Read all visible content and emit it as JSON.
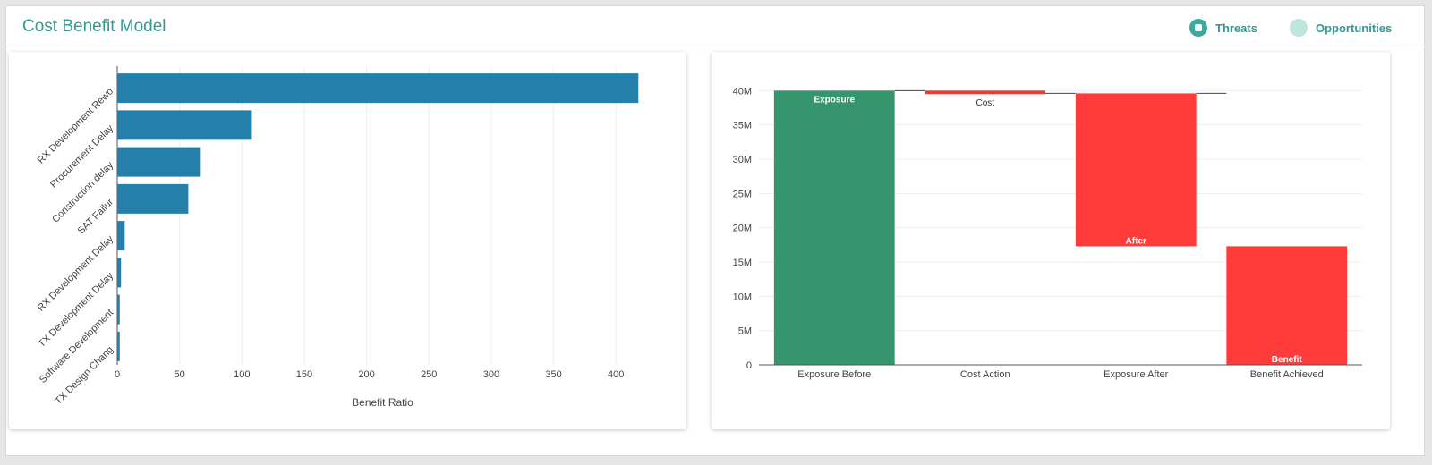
{
  "header": {
    "title": "Cost Benefit Model",
    "toggles": [
      {
        "label": "Threats",
        "icon": "radio-selected-icon",
        "color": "#3aa99e",
        "selected": true
      },
      {
        "label": "Opportunities",
        "icon": "radio-unselected-icon",
        "color": "#bfe6dc",
        "selected": false
      }
    ]
  },
  "chart_data": [
    {
      "type": "bar",
      "orientation": "horizontal",
      "categories": [
        "RX Development Rework",
        "Procurement Delay",
        "Construction delay",
        "SAT Failure",
        "RX Development Delay",
        "TX Development Delay",
        "Software Development",
        "TX Design Change"
      ],
      "category_labels": [
        "RX Development Rewo",
        "Procurement Delay",
        "Construction delay",
        "SAT Failur",
        "RX Development Delay",
        "TX Development Delay",
        "Software Development",
        "TX Design Chang"
      ],
      "values": [
        418,
        108,
        67,
        57,
        6,
        3,
        2,
        2
      ],
      "xlabel": "Benefit Ratio",
      "ylabel": "",
      "xlim": [
        0,
        430
      ],
      "xticks": [
        0,
        50,
        100,
        150,
        200,
        250,
        300,
        350,
        400
      ],
      "color": "#2480aa",
      "grid": true
    },
    {
      "type": "bar",
      "subtype": "waterfall",
      "categories": [
        "Exposure Before",
        "Cost Action",
        "Exposure After",
        "Benefit Achieved"
      ],
      "bars": [
        {
          "label": "Exposure",
          "base": 0,
          "top": 40000000,
          "color": "#37956d",
          "label_pos": "top-inside"
        },
        {
          "label": "Cost",
          "base": 39500000,
          "top": 40000000,
          "color": "#f03a3a",
          "label_pos": "below"
        },
        {
          "label": "After",
          "base": 17300000,
          "top": 39600000,
          "color": "#ff3c3a",
          "label_pos": "bottom-inside"
        },
        {
          "label": "Benefit",
          "base": 0,
          "top": 17300000,
          "color": "#ff3c3a",
          "label_pos": "bottom-inside"
        }
      ],
      "ylim": [
        0,
        42000000
      ],
      "yticks": [
        0,
        5000000,
        10000000,
        15000000,
        20000000,
        25000000,
        30000000,
        35000000,
        40000000
      ],
      "ytick_labels": [
        "0",
        "5M",
        "10M",
        "15M",
        "20M",
        "25M",
        "30M",
        "35M",
        "40M"
      ],
      "grid": true
    }
  ]
}
